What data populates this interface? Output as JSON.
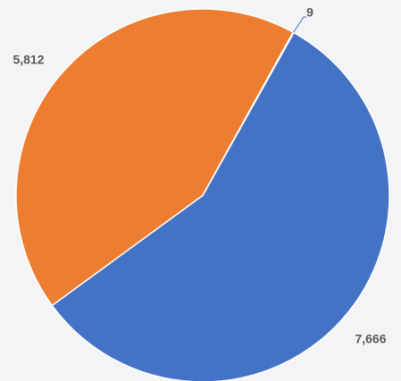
{
  "chart_data": {
    "type": "pie",
    "values": [
      7666,
      5812,
      9
    ],
    "value_labels": [
      "7,666",
      "5,812",
      "9"
    ],
    "colors": [
      "#4472c4",
      "#ed7d31",
      "#a5a5a5"
    ]
  }
}
